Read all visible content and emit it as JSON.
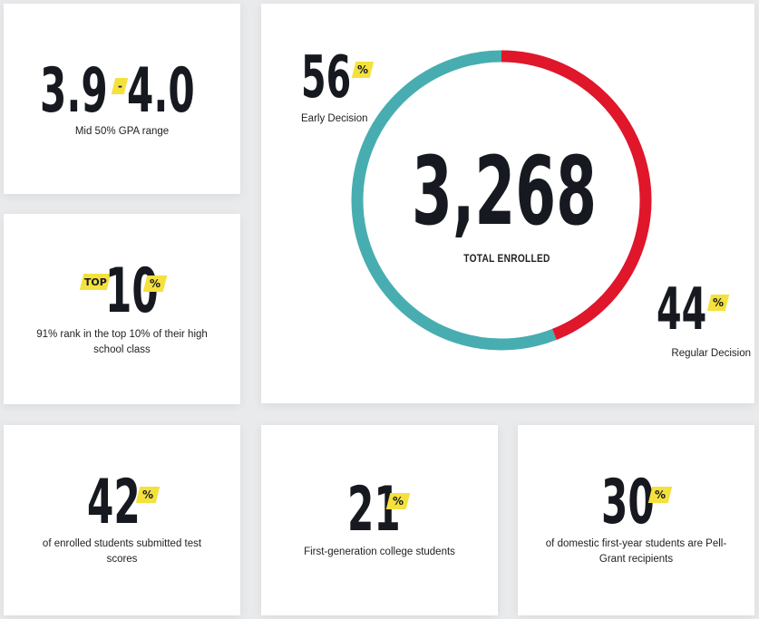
{
  "colors": {
    "teal": "#48adb0",
    "red": "#e0162b",
    "yellow": "#f5e13d",
    "text": "#16191f"
  },
  "gpa": {
    "low": "3.9",
    "dash": "-",
    "high": "4.0",
    "caption": "Mid 50% GPA range"
  },
  "top10": {
    "tag": "TOP",
    "number": "10",
    "pct": "%",
    "caption_line1": "91% rank in the top 10% of their high",
    "caption_line2": "school class"
  },
  "enrolled": {
    "total": "3,268",
    "total_label": "TOTAL ENROLLED",
    "early": {
      "value": "56",
      "pct": "%",
      "label": "Early Decision",
      "fraction": 0.56
    },
    "regular": {
      "value": "44",
      "pct": "%",
      "label": "Regular Decision",
      "fraction": 0.44
    }
  },
  "test_scores": {
    "number": "42",
    "pct": "%",
    "caption_line1": "of enrolled students submitted test",
    "caption_line2": "scores"
  },
  "first_gen": {
    "number": "21",
    "pct": "%",
    "caption": "First-generation college students"
  },
  "pell": {
    "number": "30",
    "pct": "%",
    "caption_line1": "of domestic first-year students are Pell-",
    "caption_line2": "Grant recipients"
  }
}
